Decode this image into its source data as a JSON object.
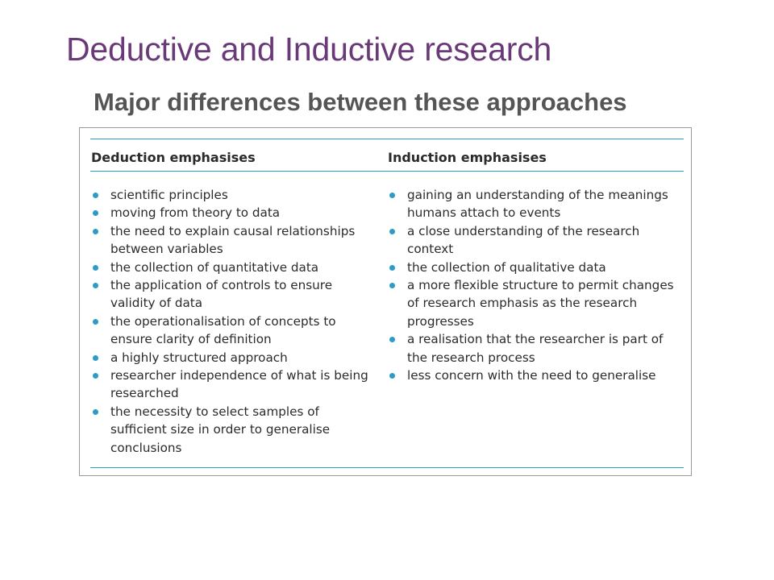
{
  "slide": {
    "title": "Deductive and Inductive research",
    "subtitle": "Major differences between these approaches"
  },
  "table": {
    "deduction_header": "Deduction emphasises",
    "induction_header": "Induction emphasises",
    "deduction_items": [
      "scientific principles",
      "moving from theory to data",
      "the need to explain causal relationships between variables",
      "the collection of quantitative data",
      "the application of controls to ensure validity of data",
      "the operationalisation of concepts to ensure clarity of definition",
      "a highly structured approach",
      "researcher independence of what is being researched",
      "the necessity to select samples of sufficient size in order to generalise conclusions"
    ],
    "induction_items": [
      "gaining an understanding of the meanings humans attach to events",
      "a close understanding of the research context",
      "the collection of qualitative data",
      "a more flexible structure to permit changes of research emphasis as the research progresses",
      "a realisation that the researcher is part of the research process",
      "less concern with the need to generalise"
    ]
  },
  "colors": {
    "title": "#6a3a78",
    "subtitle": "#555555",
    "accent_rule": "#2e9bc5",
    "bullet": "#2e9bc5"
  },
  "icons": {
    "bullet": "bullet-dot-icon"
  }
}
